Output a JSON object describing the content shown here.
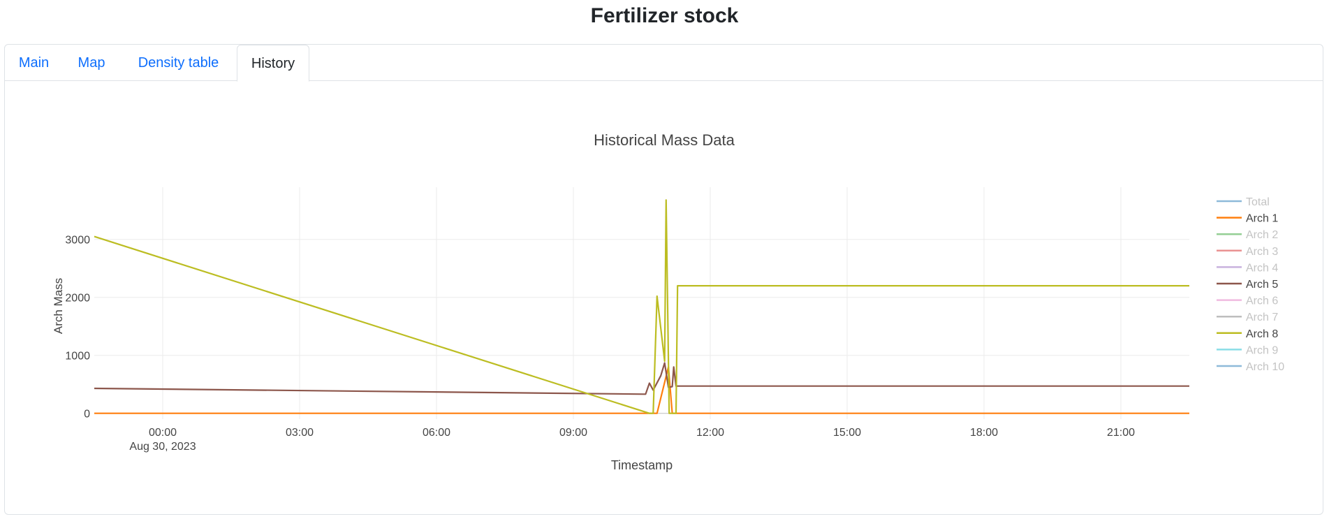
{
  "page": {
    "title": "Fertilizer stock"
  },
  "tabs": [
    {
      "label": "Main",
      "active": false
    },
    {
      "label": "Map",
      "active": false
    },
    {
      "label": "Density table",
      "active": false
    },
    {
      "label": "History",
      "active": true
    }
  ],
  "chart_data": {
    "type": "line",
    "title": "Historical Mass Data",
    "xlabel": "Timestamp",
    "ylabel": "Arch Mass",
    "x_range": [
      "2023-08-29 22:30",
      "2023-08-30 22:30"
    ],
    "ylim": [
      -100,
      3900
    ],
    "x_ticks": [
      {
        "t": "2023-08-30 00:00",
        "label": "00:00",
        "sublabel": "Aug 30, 2023"
      },
      {
        "t": "2023-08-30 03:00",
        "label": "03:00"
      },
      {
        "t": "2023-08-30 06:00",
        "label": "06:00"
      },
      {
        "t": "2023-08-30 09:00",
        "label": "09:00"
      },
      {
        "t": "2023-08-30 12:00",
        "label": "12:00"
      },
      {
        "t": "2023-08-30 15:00",
        "label": "15:00"
      },
      {
        "t": "2023-08-30 18:00",
        "label": "18:00"
      },
      {
        "t": "2023-08-30 21:00",
        "label": "21:00"
      }
    ],
    "y_ticks": [
      0,
      1000,
      2000,
      3000
    ],
    "grid": true,
    "legend_position": "right",
    "series": [
      {
        "name": "Total",
        "color": "#1f77b4",
        "visible": false,
        "points": []
      },
      {
        "name": "Arch 1",
        "color": "#ff7f0e",
        "visible": true,
        "points": [
          [
            "2023-08-29 22:30",
            0
          ],
          [
            "2023-08-30 10:50",
            0
          ],
          [
            "2023-08-30 11:05",
            800
          ],
          [
            "2023-08-30 11:10",
            0
          ],
          [
            "2023-08-30 22:30",
            0
          ]
        ]
      },
      {
        "name": "Arch 2",
        "color": "#2ca02c",
        "visible": false,
        "points": []
      },
      {
        "name": "Arch 3",
        "color": "#d62728",
        "visible": false,
        "points": []
      },
      {
        "name": "Arch 4",
        "color": "#9467bd",
        "visible": false,
        "points": []
      },
      {
        "name": "Arch 5",
        "color": "#8c564b",
        "visible": true,
        "points": [
          [
            "2023-08-29 22:30",
            430
          ],
          [
            "2023-08-30 10:35",
            330
          ],
          [
            "2023-08-30 10:40",
            520
          ],
          [
            "2023-08-30 10:45",
            400
          ],
          [
            "2023-08-30 10:55",
            650
          ],
          [
            "2023-08-30 11:00",
            870
          ],
          [
            "2023-08-30 11:05",
            450
          ],
          [
            "2023-08-30 11:10",
            460
          ],
          [
            "2023-08-30 11:12",
            800
          ],
          [
            "2023-08-30 11:15",
            470
          ],
          [
            "2023-08-30 22:30",
            470
          ]
        ]
      },
      {
        "name": "Arch 6",
        "color": "#e377c2",
        "visible": false,
        "points": []
      },
      {
        "name": "Arch 7",
        "color": "#7f7f7f",
        "visible": false,
        "points": []
      },
      {
        "name": "Arch 8",
        "color": "#bcbd22",
        "visible": true,
        "points": [
          [
            "2023-08-29 22:30",
            3050
          ],
          [
            "2023-08-30 10:40",
            0
          ],
          [
            "2023-08-30 10:45",
            0
          ],
          [
            "2023-08-30 10:50",
            2020
          ],
          [
            "2023-08-30 11:00",
            900
          ],
          [
            "2023-08-30 11:02",
            3680
          ],
          [
            "2023-08-30 11:06",
            0
          ],
          [
            "2023-08-30 11:15",
            0
          ],
          [
            "2023-08-30 11:17",
            2200
          ],
          [
            "2023-08-30 22:30",
            2200
          ]
        ]
      },
      {
        "name": "Arch 9",
        "color": "#17becf",
        "visible": false,
        "points": []
      },
      {
        "name": "Arch 10",
        "color": "#1f77b4",
        "visible": false,
        "points": []
      }
    ]
  }
}
